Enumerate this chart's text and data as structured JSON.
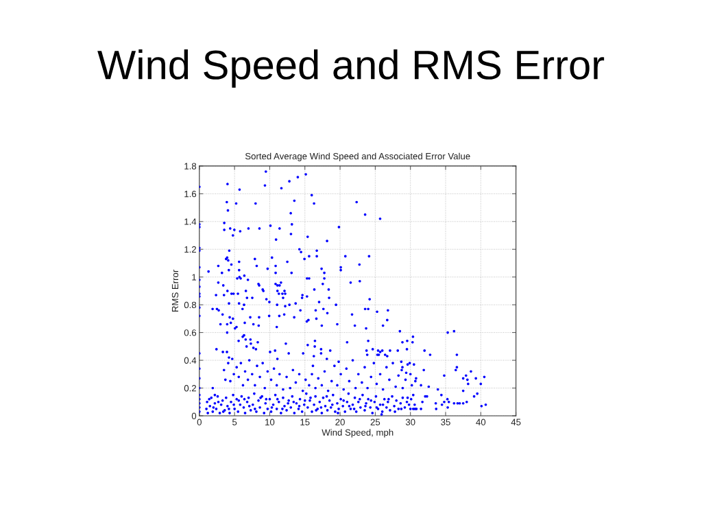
{
  "chart_data": {
    "type": "scatter",
    "title": "Wind Speed and RMS Error",
    "subtitle": "Sorted Average Wind Speed and Associated Error Value",
    "xlabel": "Wind Speed, mph",
    "ylabel": "RMS Error",
    "xlim": [
      0,
      45
    ],
    "xticks": [
      0,
      5,
      10,
      15,
      20,
      25,
      30,
      35,
      40,
      45
    ],
    "ylim": [
      0,
      1.8
    ],
    "yticks": [
      0,
      0.2,
      0.4,
      0.6,
      0.8,
      1,
      1.2,
      1.4,
      1.6,
      1.8
    ],
    "grid": true,
    "marker": "circle",
    "series": [
      {
        "color": "#0000ff",
        "x": [
          0,
          0,
          0,
          0,
          0,
          0,
          0,
          0,
          0,
          0,
          0,
          0,
          0,
          0,
          0,
          0,
          0,
          0,
          0,
          0,
          0,
          4.0,
          3.9,
          4.06,
          3.54,
          3.54,
          4.38,
          4.97,
          4.77,
          5.8,
          5.23,
          5.71,
          6.98,
          7.99,
          8.54,
          9.45,
          9.32,
          10.1,
          10.9,
          11.4,
          11.66,
          12.79,
          13.99,
          15.13,
          13.5,
          12.99,
          13.15,
          13.02,
          15.97,
          16.3,
          15.39,
          18.15,
          19.84,
          14.22,
          14.45,
          15.6,
          16.69,
          16.69,
          14.94,
          12.5,
          10.32,
          7.89,
          8.15,
          2.69,
          3.21,
          1.3,
          3.8,
          3.95,
          4.1,
          4.25,
          4.55,
          4.19,
          5.65,
          5.65,
          9.7,
          10.84,
          10.84,
          13.1,
          17.37,
          17.76,
          20.1,
          20.1,
          20.75,
          22.35,
          23.56,
          25.69,
          24.12,
          22.75,
          1.88,
          2.5,
          2.75,
          2.69,
          2.37,
          3.4,
          3.5,
          3.99,
          3.3,
          3.0,
          3.95,
          3.95,
          4.31,
          4.47,
          4.77,
          2.43,
          3.34,
          3.92,
          4.21,
          4.67,
          4.21,
          4.57,
          4.86,
          5.38,
          5.7,
          5.87,
          6.39,
          5.48,
          5.64,
          6.13,
          6.35,
          6.61,
          6.77,
          6.9,
          7.52,
          6.45,
          5.28,
          5.06,
          6.35,
          6.16,
          5.58,
          6.58,
          6.71,
          7.26,
          7.32,
          7.68,
          8.3,
          8.04,
          7.23,
          7.68,
          8.49,
          8.43,
          8.4,
          8.5,
          9.0,
          9.1,
          9.95,
          9.92,
          9.53,
          10.05,
          10.83,
          11.1,
          11.4,
          11.6,
          11.05,
          11.1,
          11.3,
          11.8,
          12.1,
          12.2,
          11.0,
          11.36,
          12.06,
          12.2,
          11.9,
          12.8,
          13.48,
          13.68,
          10.76,
          11.09,
          12.29,
          12.7,
          14.36,
          14.6,
          14.65,
          15.3,
          15.6,
          15.3,
          15.27,
          15.5,
          14.75,
          15.4,
          16.34,
          16.4,
          16.27,
          16.14,
          16.43,
          16.63,
          16.53,
          17.02,
          17.54,
          17.76,
          17.63,
          17.4,
          17.3,
          17.3,
          18.38,
          18.44,
          18.19,
          18.6,
          18.12,
          19.42,
          19.6,
          19.8,
          21.7,
          22.1,
          21.5,
          22.8,
          21.0,
          24.2,
          23.56,
          24.0,
          25.26,
          26.8,
          26.7,
          23.7,
          26.1,
          28.5,
          24.0,
          28.86,
          29.54,
          30.36,
          29.5,
          30.3,
          23.76,
          23.86,
          24.64,
          25.3,
          25.5,
          25.4,
          26.0,
          25.7,
          26.4,
          26.7,
          27.1,
          28.2,
          32.0,
          32.8,
          35.3,
          36.2,
          36.6,
          36.44,
          36.6,
          34.8,
          37.5,
          37.9,
          38.6,
          38.1,
          38.2,
          39.3,
          40.5,
          40.0,
          37.5,
          39.05,
          39.5,
          33.9,
          34.4,
          33.6,
          33.66,
          34.48,
          34.8,
          35.26,
          35.46,
          35.3,
          36.2,
          36.7,
          37.0,
          37.5,
          38.0,
          40.1,
          40.7,
          32.6,
          31.9,
          31.5,
          32.1,
          32.35,
          31.7,
          31.5,
          30.65,
          30.85,
          30.0,
          30.4,
          30.6,
          28.86,
          28.76,
          29.6,
          29.9,
          30.5,
          28.7,
          29.4,
          30.0,
          30.8,
          30.7,
          30.2,
          1.9,
          2.2,
          3.5,
          3.7,
          4.1,
          4.4,
          4.9,
          5.3,
          5.6,
          5.9,
          6.2,
          6.5,
          6.9,
          7.1,
          7.5,
          7.9,
          8.2,
          8.6,
          9.0,
          9.3,
          9.7,
          10.2,
          10.6,
          11.0,
          11.4,
          11.9,
          12.4,
          12.9,
          13.3,
          13.7,
          14.2,
          14.7,
          15.1,
          15.6,
          16.0,
          16.5,
          16.9,
          17.4,
          17.8,
          18.3,
          18.8,
          19.2,
          19.6,
          20.1,
          20.5,
          20.9,
          21.3,
          21.8,
          22.2,
          22.6,
          23.1,
          23.5,
          23.9,
          24.4,
          24.8,
          25.2,
          25.7,
          26.1,
          26.6,
          27.0,
          27.5,
          27.9,
          28.3,
          28.9,
          29.3,
          1.0,
          1.1,
          1.2,
          1.5,
          1.7,
          1.9,
          2.2,
          2.4,
          2.6,
          2.9,
          3.1,
          3.3,
          3.6,
          3.8,
          4.0,
          4.3,
          4.5,
          4.8,
          5.0,
          5.3,
          5.5,
          5.8,
          6.0,
          6.3,
          6.5,
          6.8,
          7.0,
          7.3,
          7.6,
          7.8,
          8.1,
          8.4,
          8.6,
          8.9,
          9.2,
          9.4,
          9.7,
          10.0,
          10.2,
          10.5,
          10.8,
          11.0,
          11.3,
          11.6,
          11.9,
          12.1,
          12.4,
          12.7,
          13.0,
          13.2,
          13.5,
          13.8,
          14.1,
          14.3,
          14.6,
          14.9,
          15.2,
          15.4,
          15.7,
          16.0,
          16.3,
          16.5,
          16.8,
          17.1,
          17.4,
          17.6,
          17.9,
          18.2,
          18.5,
          18.7,
          19.0,
          19.3,
          19.6,
          19.8,
          20.1,
          20.4,
          20.7,
          21.0,
          21.2,
          21.5,
          21.8,
          22.1,
          22.3,
          22.6,
          22.9,
          23.2,
          23.5,
          23.7,
          24.0,
          24.3,
          24.6,
          24.9,
          25.1,
          25.4,
          25.7,
          26.0,
          26.3,
          26.6,
          26.8,
          27.1,
          27.4,
          27.7,
          28.0,
          28.3,
          28.6,
          28.9,
          29.2,
          29.5,
          29.8,
          30.1,
          30.4,
          25.9,
          1.4,
          2.0,
          2.7,
          3.4,
          4.2,
          4.9,
          5.6,
          6.4,
          7.1,
          7.9,
          8.7,
          9.5,
          10.3,
          11.1,
          11.8,
          12.6,
          13.4,
          14.2,
          15.0,
          15.8,
          16.6,
          17.3,
          18.1,
          18.9,
          19.7,
          20.5,
          21.3,
          22.0,
          22.8,
          23.6,
          24.4,
          25.2,
          26.1,
          26.9,
          27.8,
          28.7,
          29.6
        ],
        "values": [
          1.65,
          1.38,
          1.36,
          1.21,
          1.19,
          1.07,
          0.98,
          0.93,
          0.88,
          0.86,
          0.78,
          0.72,
          0.45,
          0.34,
          0.27,
          0.2,
          0.15,
          0.12,
          0.09,
          0.06,
          0.03,
          1.67,
          1.54,
          1.48,
          1.39,
          1.34,
          1.35,
          1.34,
          1.3,
          1.33,
          1.53,
          1.63,
          1.35,
          1.53,
          1.35,
          1.76,
          1.66,
          1.37,
          1.27,
          1.35,
          1.64,
          1.69,
          1.72,
          1.74,
          1.55,
          1.46,
          1.38,
          1.31,
          1.59,
          1.53,
          1.29,
          1.26,
          1.36,
          1.2,
          1.18,
          1.15,
          1.19,
          1.15,
          1.13,
          1.11,
          1.14,
          1.13,
          1.08,
          1.08,
          1.03,
          1.04,
          1.13,
          1.14,
          1.12,
          1.19,
          1.09,
          1.05,
          1.11,
          1.05,
          1.06,
          1.08,
          1.03,
          1.03,
          1.06,
          1.03,
          1.07,
          1.05,
          1.15,
          1.54,
          1.45,
          1.42,
          1.15,
          1.09,
          0.77,
          0.77,
          0.76,
          0.96,
          0.87,
          0.94,
          0.87,
          0.9,
          0.73,
          0.66,
          0.66,
          0.6,
          0.71,
          0.67,
          0.7,
          0.48,
          0.46,
          0.46,
          0.42,
          0.41,
          0.81,
          0.88,
          0.88,
          0.99,
          1.0,
          0.99,
          1.01,
          0.88,
          0.81,
          0.77,
          0.8,
          0.9,
          0.85,
          0.98,
          0.85,
          0.67,
          0.64,
          0.63,
          0.58,
          0.57,
          0.54,
          0.55,
          0.5,
          0.55,
          0.52,
          0.49,
          0.53,
          0.48,
          0.71,
          0.66,
          0.71,
          0.65,
          0.95,
          0.94,
          0.91,
          0.9,
          0.82,
          0.72,
          0.84,
          0.46,
          0.95,
          0.94,
          0.94,
          0.96,
          0.8,
          0.9,
          0.88,
          0.88,
          0.9,
          0.88,
          0.64,
          0.72,
          0.73,
          0.79,
          0.85,
          0.8,
          0.71,
          0.81,
          0.47,
          0.41,
          0.52,
          0.45,
          0.76,
          0.85,
          0.87,
          0.99,
          0.99,
          0.86,
          0.68,
          0.69,
          0.45,
          0.51,
          0.91,
          0.5,
          0.43,
          0.36,
          0.54,
          0.7,
          0.76,
          0.82,
          0.95,
          0.99,
          0.77,
          0.65,
          0.48,
          0.45,
          0.91,
          0.85,
          0.74,
          0.47,
          0.41,
          0.8,
          0.66,
          0.39,
          0.73,
          0.65,
          0.96,
          0.97,
          0.53,
          0.84,
          0.77,
          0.77,
          0.75,
          0.76,
          0.69,
          0.63,
          0.65,
          0.61,
          0.54,
          0.53,
          0.54,
          0.57,
          0.48,
          0.53,
          0.47,
          0.44,
          0.48,
          0.44,
          0.44,
          0.47,
          0.47,
          0.46,
          0.44,
          0.43,
          0.47,
          0.47,
          0.47,
          0.44,
          0.6,
          0.61,
          0.44,
          0.33,
          0.35,
          0.29,
          0.27,
          0.29,
          0.32,
          0.26,
          0.23,
          0.27,
          0.28,
          0.23,
          0.18,
          0.14,
          0.16,
          0.19,
          0.15,
          0.09,
          0.05,
          0.08,
          0.1,
          0.12,
          0.1,
          0.06,
          0.09,
          0.09,
          0.09,
          0.09,
          0.1,
          0.07,
          0.08,
          0.21,
          0.33,
          0.22,
          0.14,
          0.14,
          0.1,
          0.05,
          0.05,
          0.05,
          0.05,
          0.05,
          0.08,
          0.35,
          0.33,
          0.37,
          0.38,
          0.37,
          0.39,
          0.31,
          0.3,
          0.27,
          0.25,
          0.22,
          0.2,
          0.15,
          0.33,
          0.26,
          0.38,
          0.25,
          0.3,
          0.35,
          0.28,
          0.38,
          0.22,
          0.32,
          0.26,
          0.4,
          0.3,
          0.22,
          0.36,
          0.28,
          0.38,
          0.2,
          0.32,
          0.26,
          0.34,
          0.22,
          0.3,
          0.19,
          0.28,
          0.2,
          0.33,
          0.24,
          0.3,
          0.18,
          0.26,
          0.22,
          0.3,
          0.2,
          0.27,
          0.22,
          0.32,
          0.18,
          0.25,
          0.36,
          0.22,
          0.3,
          0.19,
          0.34,
          0.25,
          0.4,
          0.2,
          0.3,
          0.24,
          0.35,
          0.2,
          0.28,
          0.38,
          0.23,
          0.3,
          0.19,
          0.35,
          0.26,
          0.38,
          0.21,
          0.29,
          0.2,
          0.26,
          0.05,
          0.1,
          0.02,
          0.07,
          0.13,
          0.03,
          0.09,
          0.05,
          0.14,
          0.02,
          0.08,
          0.11,
          0.04,
          0.13,
          0.07,
          0.02,
          0.1,
          0.15,
          0.05,
          0.12,
          0.03,
          0.08,
          0.14,
          0.06,
          0.02,
          0.1,
          0.13,
          0.04,
          0.08,
          0.16,
          0.03,
          0.11,
          0.06,
          0.14,
          0.02,
          0.09,
          0.05,
          0.12,
          0.03,
          0.08,
          0.15,
          0.05,
          0.1,
          0.02,
          0.13,
          0.07,
          0.04,
          0.11,
          0.06,
          0.14,
          0.02,
          0.09,
          0.05,
          0.12,
          0.03,
          0.08,
          0.16,
          0.06,
          0.11,
          0.03,
          0.08,
          0.14,
          0.05,
          0.1,
          0.02,
          0.13,
          0.07,
          0.04,
          0.11,
          0.06,
          0.15,
          0.03,
          0.09,
          0.05,
          0.12,
          0.07,
          0.03,
          0.1,
          0.16,
          0.05,
          0.08,
          0.13,
          0.03,
          0.1,
          0.06,
          0.15,
          0.04,
          0.09,
          0.12,
          0.06,
          0.02,
          0.1,
          0.14,
          0.05,
          0.08,
          0.03,
          0.12,
          0.06,
          0.1,
          0.04,
          0.14,
          0.07,
          0.11,
          0.05,
          0.09,
          0.13,
          0.06,
          0.1,
          0.08,
          0.12,
          0.15,
          0.01,
          0.12,
          0.06,
          0.1,
          0.03,
          0.05,
          0.08,
          0.11,
          0.12,
          0.07,
          0.05,
          0.13,
          0.12,
          0.06,
          0.12,
          0.05,
          0.09,
          0.1,
          0.07,
          0.11,
          0.13,
          0.04,
          0.06,
          0.14,
          0.08,
          0.02,
          0.11,
          0.07,
          0.05,
          0.12,
          0.07,
          0.11,
          0.06,
          0.08,
          0.12,
          0.03,
          0.05,
          0.13
        ]
      }
    ]
  }
}
